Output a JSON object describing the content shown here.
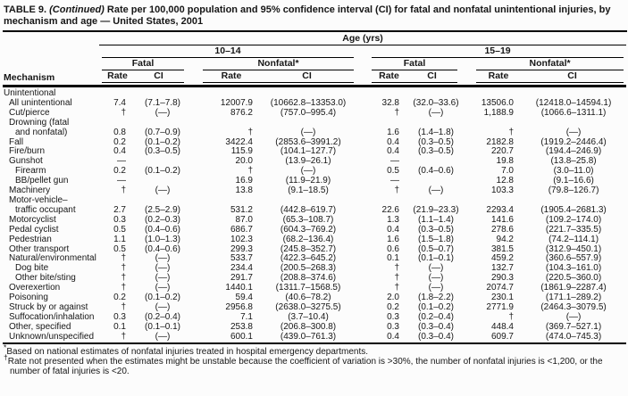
{
  "title": {
    "label": "TABLE 9.",
    "continued": "(Continued)",
    "rest": "Rate per 100,000 population and 95% confidence interval (CI) for fatal and nonfatal unintentional injuries, by mechanism and age — United States, 2001"
  },
  "header": {
    "age_label": "Age (yrs)",
    "group_10_14": "10–14",
    "group_15_19": "15–19",
    "fatal_label": "Fatal",
    "nonfatal_label": "Nonfatal*",
    "mechanism_label": "Mechanism",
    "rate_label": "Rate",
    "ci_label": "CI"
  },
  "table": {
    "rows": [
      {
        "label": "Unintentional",
        "indent": 0,
        "cells": [
          "",
          "",
          "",
          "",
          "",
          "",
          "",
          ""
        ]
      },
      {
        "label": "All unintentional",
        "indent": 1,
        "cells": [
          "7.4",
          "(7.1–7.8)",
          "12007.9",
          "(10662.8–13353.0)",
          "32.8",
          "(32.0–33.6)",
          "13506.0",
          "(12418.0–14594.1)"
        ]
      },
      {
        "label": "Cut/pierce",
        "indent": 1,
        "cells": [
          "†",
          "(—)",
          "876.2",
          "(757.0–995.4)",
          "†",
          "(—)",
          "1,188.9",
          "(1066.6–1311.1)"
        ]
      },
      {
        "label": "Drowning (fatal",
        "indent": 1,
        "cells": [
          "",
          "",
          "",
          "",
          "",
          "",
          "",
          ""
        ]
      },
      {
        "label": "and nonfatal)",
        "indent": 2,
        "cells": [
          "0.8",
          "(0.7–0.9)",
          "†",
          "(—)",
          "1.6",
          "(1.4–1.8)",
          "†",
          "(—)"
        ]
      },
      {
        "label": "Fall",
        "indent": 1,
        "cells": [
          "0.2",
          "(0.1–0.2)",
          "3422.4",
          "(2853.6–3991.2)",
          "0.4",
          "(0.3–0.5)",
          "2182.8",
          "(1919.2–2446.4)"
        ]
      },
      {
        "label": "Fire/burn",
        "indent": 1,
        "cells": [
          "0.4",
          "(0.3–0.5)",
          "115.9",
          "(104.1–127.7)",
          "0.4",
          "(0.3–0.5)",
          "220.7",
          "(194.4–246.9)"
        ]
      },
      {
        "label": "Gunshot",
        "indent": 1,
        "cells": [
          "—",
          "",
          "20.0",
          "(13.9–26.1)",
          "—",
          "",
          "19.8",
          "(13.8–25.8)"
        ]
      },
      {
        "label": "Firearm",
        "indent": 2,
        "cells": [
          "0.2",
          "(0.1–0.2)",
          "†",
          "(—)",
          "0.5",
          "(0.4–0.6)",
          "7.0",
          "(3.0–11.0)"
        ]
      },
      {
        "label": "BB/pellet gun",
        "indent": 2,
        "cells": [
          "—",
          "",
          "16.9",
          "(11.9–21.9)",
          "—",
          "",
          "12.8",
          "(9.1–16.6)"
        ]
      },
      {
        "label": "Machinery",
        "indent": 1,
        "cells": [
          "†",
          "(—)",
          "13.8",
          "(9.1–18.5)",
          "†",
          "(—)",
          "103.3",
          "(79.8–126.7)"
        ]
      },
      {
        "label": "Motor-vehicle–",
        "indent": 1,
        "cells": [
          "",
          "",
          "",
          "",
          "",
          "",
          "",
          ""
        ]
      },
      {
        "label": "traffic occupant",
        "indent": 2,
        "cells": [
          "2.7",
          "(2.5–2.9)",
          "531.2",
          "(442.8–619.7)",
          "22.6",
          "(21.9–23.3)",
          "2293.4",
          "(1905.4–2681.3)"
        ]
      },
      {
        "label": "Motorcyclist",
        "indent": 1,
        "cells": [
          "0.3",
          "(0.2–0.3)",
          "87.0",
          "(65.3–108.7)",
          "1.3",
          "(1.1–1.4)",
          "141.6",
          "(109.2–174.0)"
        ]
      },
      {
        "label": "Pedal cyclist",
        "indent": 1,
        "cells": [
          "0.5",
          "(0.4–0.6)",
          "686.7",
          "(604.3–769.2)",
          "0.4",
          "(0.3–0.5)",
          "278.6",
          "(221.7–335.5)"
        ]
      },
      {
        "label": "Pedestrian",
        "indent": 1,
        "cells": [
          "1.1",
          "(1.0–1.3)",
          "102.3",
          "(68.2–136.4)",
          "1.6",
          "(1.5–1.8)",
          "94.2",
          "(74.2–114.1)"
        ]
      },
      {
        "label": "Other transport",
        "indent": 1,
        "cells": [
          "0.5",
          "(0.4–0.6)",
          "299.3",
          "(245.8–352.7)",
          "0.6",
          "(0.5–0.7)",
          "381.5",
          "(312.9–450.1)"
        ]
      },
      {
        "label": "Natural/environmental",
        "indent": 1,
        "cells": [
          "†",
          "(—)",
          "533.7",
          "(422.3–645.2)",
          "0.1",
          "(0.1–0.1)",
          "459.2",
          "(360.6–557.9)"
        ]
      },
      {
        "label": "Dog bite",
        "indent": 2,
        "cells": [
          "†",
          "(—)",
          "234.4",
          "(200.5–268.3)",
          "†",
          "(—)",
          "132.7",
          "(104.3–161.0)"
        ]
      },
      {
        "label": "Other bite/sting",
        "indent": 2,
        "cells": [
          "†",
          "(—)",
          "291.7",
          "(208.8–374.6)",
          "†",
          "(—)",
          "290.3",
          "(220.5–360.0)"
        ]
      },
      {
        "label": "Overexertion",
        "indent": 1,
        "cells": [
          "†",
          "(—)",
          "1440.1",
          "(1311.7–1568.5)",
          "†",
          "(—)",
          "2074.7",
          "(1861.9–2287.4)"
        ]
      },
      {
        "label": "Poisoning",
        "indent": 1,
        "cells": [
          "0.2",
          "(0.1–0.2)",
          "59.4",
          "(40.6–78.2)",
          "2.0",
          "(1.8–2.2)",
          "230.1",
          "(171.1–289.2)"
        ]
      },
      {
        "label": "Struck by or against",
        "indent": 1,
        "cells": [
          "†",
          "(—)",
          "2956.8",
          "(2638.0–3275.5)",
          "0.2",
          "(0.1–0.2)",
          "2771.9",
          "(2464.3–3079.5)"
        ]
      },
      {
        "label": "Suffocation/inhalation",
        "indent": 1,
        "cells": [
          "0.3",
          "(0.2–0.4)",
          "7.1",
          "(3.7–10.4)",
          "0.3",
          "(0.2–0.4)",
          "†",
          "(—)"
        ]
      },
      {
        "label": "Other, specified",
        "indent": 1,
        "cells": [
          "0.1",
          "(0.1–0.1)",
          "253.8",
          "(206.8–300.8)",
          "0.3",
          "(0.3–0.4)",
          "448.4",
          "(369.7–527.1)"
        ]
      },
      {
        "label": "Unknown/unspecified",
        "indent": 1,
        "cells": [
          "†",
          "(—)",
          "600.1",
          "(439.0–761.3)",
          "0.4",
          "(0.3–0.4)",
          "609.7",
          "(474.0–745.3)"
        ]
      }
    ]
  },
  "footnotes": [
    {
      "marker": "*",
      "text": "Based on national estimates of nonfatal injuries treated in hospital emergency departments."
    },
    {
      "marker": "†",
      "text": "Rate not presented when the estimates might be unstable because the coefficient of variation is >30%, the number of nonfatal injuries is <1,200, or the number of fatal injuries is <20."
    }
  ],
  "colors": {
    "text": "#161616",
    "rule": "#000000",
    "background": "#fcfcfc"
  }
}
